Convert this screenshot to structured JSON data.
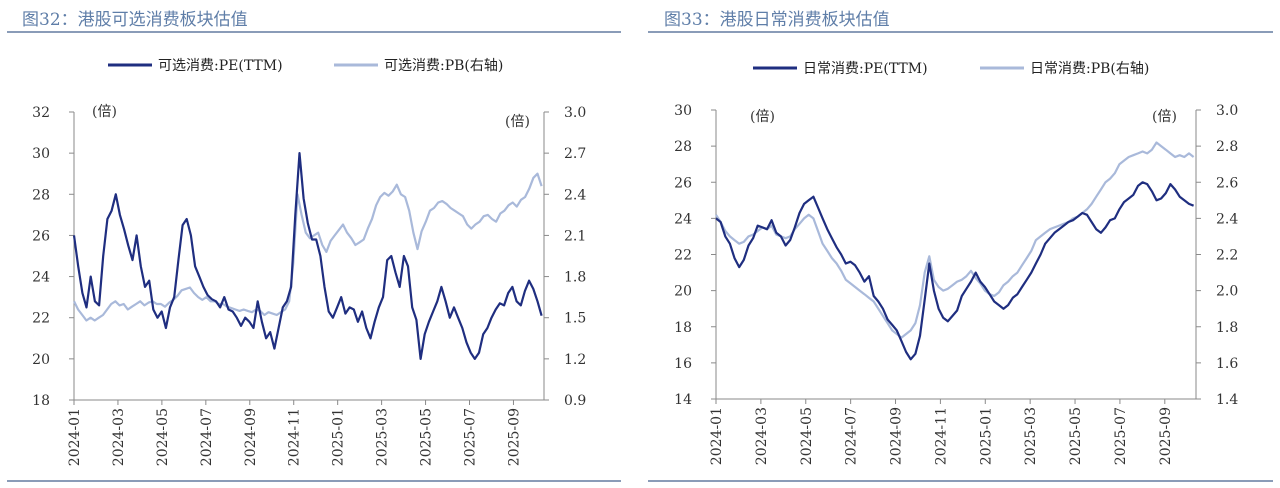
{
  "colors": {
    "pe": "#1f2e80",
    "pb": "#a9b9da",
    "axis": "#8a8a8a",
    "title": "#5f7ea8",
    "rule": "#8a9cb8"
  },
  "chart_data": [
    {
      "type": "line",
      "title": "图32：港股可选消费板块估值",
      "left_unit": "(倍)",
      "right_unit": "(倍)",
      "left_axis": {
        "min": 18,
        "max": 32,
        "ticks": [
          "18",
          "20",
          "22",
          "24",
          "26",
          "28",
          "30",
          "32"
        ]
      },
      "right_axis": {
        "min": 0.9,
        "max": 3.0,
        "ticks": [
          "0.9",
          "1.2",
          "1.5",
          "1.8",
          "2.1",
          "2.4",
          "2.7",
          "3.0"
        ]
      },
      "x_ticks": [
        "2024-01",
        "2024-03",
        "2024-05",
        "2024-07",
        "2024-09",
        "2024-11",
        "2025-01",
        "2025-03",
        "2025-05",
        "2025-07",
        "2025-09"
      ],
      "series": [
        {
          "name": "可选消费:PE(TTM)",
          "axis": "left",
          "values": [
            26,
            24.5,
            23.2,
            22.5,
            24,
            22.8,
            22.6,
            25,
            26.8,
            27.2,
            28,
            27,
            26.3,
            25.5,
            24.8,
            26,
            24.5,
            23.5,
            23.8,
            22.4,
            22,
            22.3,
            21.5,
            22.5,
            23,
            24.8,
            26.5,
            26.8,
            26,
            24.5,
            24,
            23.5,
            23.1,
            22.9,
            22.8,
            22.5,
            23,
            22.4,
            22.3,
            22,
            21.6,
            22,
            21.8,
            21.5,
            22.8,
            21.8,
            21,
            21.3,
            20.5,
            21.5,
            22.5,
            22.8,
            23.5,
            27,
            30,
            27.8,
            26.6,
            25.8,
            25.8,
            25,
            23.5,
            22.3,
            22,
            22.5,
            23,
            22.2,
            22.5,
            22.4,
            21.8,
            22.3,
            21.5,
            21,
            21.8,
            22.5,
            23,
            24.8,
            25,
            24.2,
            23.5,
            25,
            24.5,
            22.5,
            21.9,
            20,
            21.2,
            21.8,
            22.3,
            22.8,
            23.5,
            22.8,
            22,
            22.5,
            22,
            21.5,
            20.8,
            20.3,
            20,
            20.3,
            21.2,
            21.5,
            22,
            22.4,
            22.7,
            22.6,
            23.2,
            23.5,
            22.8,
            22.6,
            23.3,
            23.8,
            23.4,
            22.8,
            22.1
          ]
        },
        {
          "name": "可选消费:PB(右轴)",
          "axis": "right",
          "values": [
            1.62,
            1.56,
            1.52,
            1.48,
            1.5,
            1.48,
            1.5,
            1.52,
            1.56,
            1.6,
            1.62,
            1.59,
            1.6,
            1.56,
            1.58,
            1.6,
            1.62,
            1.59,
            1.61,
            1.62,
            1.6,
            1.6,
            1.58,
            1.61,
            1.63,
            1.66,
            1.7,
            1.71,
            1.72,
            1.68,
            1.65,
            1.63,
            1.65,
            1.62,
            1.62,
            1.6,
            1.6,
            1.58,
            1.57,
            1.56,
            1.55,
            1.56,
            1.55,
            1.54,
            1.56,
            1.55,
            1.52,
            1.54,
            1.53,
            1.52,
            1.54,
            1.56,
            1.62,
            1.9,
            2.4,
            2.25,
            2.12,
            2.08,
            2.1,
            2.12,
            2.03,
            1.98,
            2.06,
            2.1,
            2.14,
            2.18,
            2.12,
            2.08,
            2.03,
            2.05,
            2.07,
            2.15,
            2.22,
            2.32,
            2.38,
            2.41,
            2.39,
            2.42,
            2.47,
            2.4,
            2.38,
            2.28,
            2.12,
            2.0,
            2.13,
            2.2,
            2.28,
            2.3,
            2.34,
            2.35,
            2.33,
            2.3,
            2.28,
            2.26,
            2.24,
            2.18,
            2.15,
            2.18,
            2.2,
            2.24,
            2.25,
            2.22,
            2.2,
            2.26,
            2.28,
            2.32,
            2.34,
            2.31,
            2.36,
            2.38,
            2.44,
            2.52,
            2.55,
            2.46
          ]
        }
      ]
    },
    {
      "type": "line",
      "title": "图33：港股日常消费板块估值",
      "left_unit": "(倍)",
      "right_unit": "(倍)",
      "left_axis": {
        "min": 14,
        "max": 30,
        "ticks": [
          "14",
          "16",
          "18",
          "20",
          "22",
          "24",
          "26",
          "28",
          "30"
        ]
      },
      "right_axis": {
        "min": 1.4,
        "max": 3.0,
        "ticks": [
          "1.4",
          "1.6",
          "1.8",
          "2.0",
          "2.2",
          "2.4",
          "2.6",
          "2.8",
          "3.0"
        ]
      },
      "x_ticks": [
        "2024-01",
        "2024-03",
        "2024-05",
        "2024-07",
        "2024-09",
        "2024-11",
        "2025-01",
        "2025-03",
        "2025-05",
        "2025-07",
        "2025-09"
      ],
      "series": [
        {
          "name": "日常消费:PE(TTM)",
          "axis": "left",
          "values": [
            24,
            23.8,
            23,
            22.6,
            21.8,
            21.3,
            21.7,
            22.5,
            22.9,
            23.6,
            23.5,
            23.4,
            23.9,
            23.2,
            23,
            22.5,
            22.8,
            23.5,
            24.3,
            24.8,
            25,
            25.2,
            24.6,
            24,
            23.4,
            22.9,
            22.4,
            22,
            21.5,
            21.6,
            21.4,
            21,
            20.5,
            20.8,
            19.7,
            19.4,
            19,
            18.4,
            18.1,
            17.8,
            17.2,
            16.6,
            16.2,
            16.5,
            17.5,
            19.5,
            21.5,
            20,
            19,
            18.5,
            18.3,
            18.6,
            18.9,
            19.7,
            20.1,
            20.5,
            21,
            20.5,
            20.2,
            19.8,
            19.4,
            19.2,
            19,
            19.2,
            19.6,
            19.8,
            20.2,
            20.6,
            21,
            21.5,
            22,
            22.6,
            22.9,
            23.2,
            23.4,
            23.6,
            23.8,
            23.9,
            24.1,
            24.3,
            24.2,
            23.8,
            23.4,
            23.2,
            23.5,
            23.9,
            24,
            24.5,
            24.9,
            25.1,
            25.3,
            25.8,
            26,
            25.9,
            25.5,
            25,
            25.1,
            25.4,
            25.9,
            25.6,
            25.2,
            25,
            24.8,
            24.7
          ]
        },
        {
          "name": "日常消费:PB(右轴)",
          "axis": "right",
          "values": [
            2.42,
            2.38,
            2.33,
            2.3,
            2.28,
            2.26,
            2.27,
            2.3,
            2.31,
            2.33,
            2.35,
            2.34,
            2.36,
            2.31,
            2.3,
            2.29,
            2.3,
            2.34,
            2.37,
            2.4,
            2.42,
            2.4,
            2.33,
            2.26,
            2.22,
            2.18,
            2.15,
            2.11,
            2.06,
            2.04,
            2.02,
            2.0,
            1.98,
            1.96,
            1.94,
            1.9,
            1.86,
            1.82,
            1.78,
            1.76,
            1.74,
            1.76,
            1.78,
            1.82,
            1.92,
            2.1,
            2.19,
            2.06,
            2.02,
            2.0,
            2.01,
            2.03,
            2.05,
            2.06,
            2.08,
            2.11,
            2.07,
            2.04,
            2.0,
            1.98,
            1.97,
            1.99,
            2.03,
            2.05,
            2.08,
            2.1,
            2.14,
            2.18,
            2.22,
            2.28,
            2.3,
            2.32,
            2.34,
            2.35,
            2.36,
            2.37,
            2.38,
            2.4,
            2.41,
            2.43,
            2.45,
            2.48,
            2.52,
            2.56,
            2.6,
            2.62,
            2.65,
            2.7,
            2.72,
            2.74,
            2.75,
            2.76,
            2.77,
            2.76,
            2.78,
            2.82,
            2.8,
            2.78,
            2.76,
            2.74,
            2.75,
            2.74,
            2.76,
            2.74
          ]
        }
      ]
    }
  ]
}
